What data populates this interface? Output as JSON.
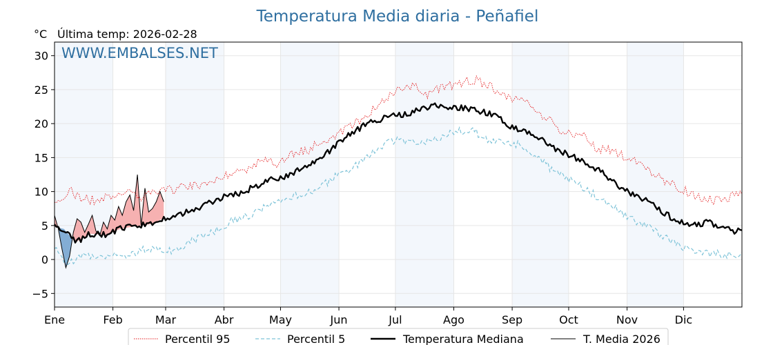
{
  "chart_data": {
    "type": "line",
    "title": "Temperatura Media diaria - Peñafiel",
    "unit_label": "°C",
    "last_temp_label": "Última temp: 2026-02-28",
    "watermark": "WWW.EMBALSES.NET",
    "ylim": [
      -7,
      32
    ],
    "yticks": [
      -5,
      0,
      5,
      10,
      15,
      20,
      25,
      30
    ],
    "ytick_labels": [
      "−5",
      "0",
      "5",
      "10",
      "15",
      "20",
      "25",
      "30"
    ],
    "xlim": [
      1,
      366
    ],
    "months": [
      {
        "label": "Ene",
        "day": 1
      },
      {
        "label": "Feb",
        "day": 32
      },
      {
        "label": "Mar",
        "day": 60
      },
      {
        "label": "Abr",
        "day": 91
      },
      {
        "label": "May",
        "day": 121
      },
      {
        "label": "Jun",
        "day": 152
      },
      {
        "label": "Jul",
        "day": 182
      },
      {
        "label": "Ago",
        "day": 213
      },
      {
        "label": "Sep",
        "day": 244
      },
      {
        "label": "Oct",
        "day": 274
      },
      {
        "label": "Nov",
        "day": 305
      },
      {
        "label": "Dic",
        "day": 335
      }
    ],
    "shaded_months": [
      0,
      2,
      4,
      6,
      8,
      10
    ],
    "grid": true,
    "legend_position": "bottom",
    "series": [
      {
        "name": "Percentil 95",
        "style": "dotted",
        "color": "#e41a1c",
        "x": [
          1,
          8,
          16,
          24,
          32,
          40,
          48,
          56,
          64,
          72,
          80,
          88,
          96,
          104,
          112,
          120,
          128,
          136,
          144,
          152,
          160,
          168,
          176,
          184,
          192,
          200,
          208,
          216,
          224,
          232,
          240,
          248,
          256,
          264,
          272,
          280,
          288,
          296,
          304,
          312,
          320,
          328,
          336,
          344,
          352,
          360,
          366
        ],
        "y": [
          8,
          10.2,
          9,
          8.6,
          9.6,
          9.8,
          9.2,
          9.8,
          10.3,
          10.8,
          11,
          12.2,
          12.8,
          13.5,
          14.6,
          14.2,
          15.5,
          16.2,
          17.5,
          18.5,
          20,
          21.5,
          23.2,
          25,
          25.5,
          24.2,
          25.6,
          25.8,
          26.5,
          25.6,
          24.2,
          23.5,
          22.2,
          20.5,
          18.5,
          18.6,
          16.5,
          16,
          15.2,
          13.8,
          12.5,
          11.2,
          10.2,
          9,
          8.6,
          9.2,
          9.8
        ]
      },
      {
        "name": "Percentil 5",
        "style": "dashed",
        "color": "#7ec3d8",
        "x": [
          1,
          8,
          16,
          24,
          32,
          40,
          48,
          56,
          64,
          72,
          80,
          88,
          96,
          104,
          112,
          120,
          128,
          136,
          144,
          152,
          160,
          168,
          176,
          184,
          192,
          200,
          208,
          216,
          224,
          232,
          240,
          248,
          256,
          264,
          272,
          280,
          288,
          296,
          304,
          312,
          320,
          328,
          336,
          344,
          352,
          360,
          366
        ],
        "y": [
          1.5,
          -0.5,
          0.5,
          0.5,
          0.8,
          0.6,
          1.4,
          1.8,
          1.2,
          2.5,
          3.5,
          4.5,
          5.8,
          6.5,
          7.5,
          8.3,
          9.2,
          10,
          11,
          12.5,
          13.5,
          15.2,
          17,
          17.6,
          17.2,
          17.6,
          18.2,
          19,
          18.8,
          17.5,
          17.4,
          16.8,
          15.5,
          13.5,
          12.2,
          11,
          9.5,
          8,
          6.4,
          5.2,
          4.2,
          2.6,
          1.5,
          1.2,
          0.8,
          0.6,
          0.8
        ]
      },
      {
        "name": "Temperatura Mediana",
        "style": "solid-thick",
        "color": "#000000",
        "x": [
          1,
          6,
          12,
          20,
          28,
          36,
          44,
          52,
          60,
          68,
          76,
          84,
          92,
          100,
          108,
          116,
          124,
          132,
          140,
          148,
          156,
          164,
          172,
          180,
          188,
          196,
          204,
          212,
          220,
          228,
          236,
          244,
          252,
          260,
          268,
          276,
          284,
          292,
          300,
          308,
          316,
          324,
          332,
          340,
          348,
          356,
          362,
          366
        ],
        "y": [
          4.8,
          4.5,
          2.5,
          3.8,
          3.6,
          4.5,
          4.9,
          5.2,
          6.2,
          6.7,
          7.3,
          8.5,
          9.3,
          9.8,
          10.8,
          11.8,
          12.2,
          13.5,
          14.3,
          16.2,
          18,
          19.5,
          20.5,
          21.2,
          21.4,
          22.2,
          22.8,
          22.4,
          22.3,
          21.8,
          21,
          19.5,
          18.8,
          17.5,
          16.2,
          15.2,
          14.2,
          12.8,
          10.8,
          9.5,
          8.5,
          7,
          5.5,
          5,
          5.5,
          4.6,
          4.2,
          4.6
        ]
      },
      {
        "name": "T. Media 2026",
        "style": "solid-thin",
        "color": "#000000",
        "x": [
          1,
          3,
          5,
          7,
          9,
          11,
          13,
          15,
          17,
          19,
          21,
          23,
          25,
          27,
          29,
          31,
          33,
          35,
          37,
          39,
          41,
          43,
          45,
          47,
          49,
          51,
          53,
          55,
          57,
          59
        ],
        "y": [
          6.5,
          4.5,
          1.5,
          -1.2,
          0.5,
          4,
          6,
          5.5,
          4,
          5.2,
          6.5,
          4.2,
          3.5,
          5.5,
          4.5,
          6.5,
          5.8,
          7.8,
          6.5,
          8.5,
          9.5,
          7.2,
          12.5,
          5,
          10.5,
          7,
          7.5,
          8.5,
          10,
          8.5
        ]
      }
    ]
  }
}
